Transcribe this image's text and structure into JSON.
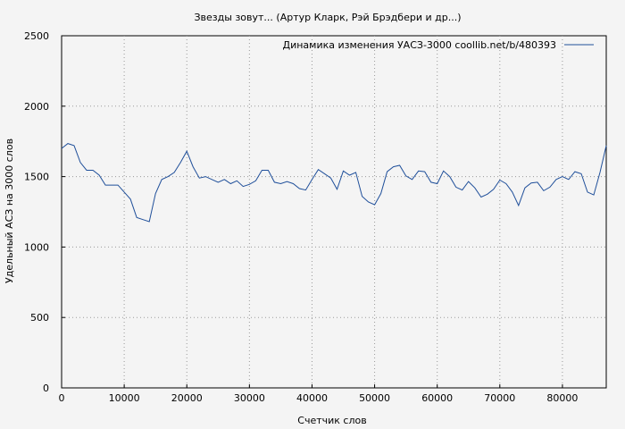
{
  "chart_data": {
    "type": "line",
    "title": "Звезды зовут... (Артур Кларк, Рэй Брэдбери и др...)",
    "xlabel": "Счетчик слов",
    "ylabel": "Удельный АСЗ на 3000 слов",
    "xlim": [
      0,
      87000
    ],
    "ylim": [
      0,
      2500
    ],
    "x_ticks": [
      0,
      10000,
      20000,
      30000,
      40000,
      50000,
      60000,
      70000,
      80000
    ],
    "x_tick_labels": [
      "0",
      "10000",
      "20000",
      "30000",
      "40000",
      "50000",
      "60000",
      "70000",
      "80000"
    ],
    "y_ticks": [
      0,
      500,
      1000,
      1500,
      2000,
      2500
    ],
    "y_tick_labels": [
      "0",
      "500",
      "1000",
      "1500",
      "2000",
      "2500"
    ],
    "grid": true,
    "legend_position": "top-right",
    "series_color": "#1f4f9a",
    "series": [
      {
        "name": "Динамика изменения УАСЗ-3000  coollib.net/b/480393",
        "x": [
          0,
          1000,
          2000,
          3000,
          4000,
          5000,
          6000,
          7000,
          8000,
          9000,
          10000,
          11000,
          12000,
          13000,
          14000,
          15000,
          16000,
          17000,
          18000,
          19000,
          20000,
          21000,
          22000,
          23000,
          24000,
          25000,
          26000,
          27000,
          28000,
          29000,
          30000,
          31000,
          32000,
          33000,
          34000,
          35000,
          36000,
          37000,
          38000,
          39000,
          40000,
          41000,
          42000,
          43000,
          44000,
          45000,
          46000,
          47000,
          48000,
          49000,
          50000,
          51000,
          52000,
          53000,
          54000,
          55000,
          56000,
          57000,
          58000,
          59000,
          60000,
          61000,
          62000,
          63000,
          64000,
          65000,
          66000,
          67000,
          68000,
          69000,
          70000,
          71000,
          72000,
          73000,
          74000,
          75000,
          76000,
          77000,
          78000,
          79000,
          80000,
          81000,
          82000,
          83000,
          84000,
          85000,
          86000,
          87000
        ],
        "values": [
          1700,
          1735,
          1720,
          1600,
          1545,
          1545,
          1510,
          1440,
          1440,
          1440,
          1390,
          1340,
          1210,
          1195,
          1180,
          1380,
          1480,
          1500,
          1530,
          1600,
          1680,
          1570,
          1490,
          1500,
          1480,
          1460,
          1480,
          1450,
          1470,
          1430,
          1445,
          1470,
          1545,
          1545,
          1460,
          1450,
          1465,
          1450,
          1415,
          1405,
          1480,
          1550,
          1520,
          1490,
          1410,
          1540,
          1510,
          1530,
          1360,
          1320,
          1300,
          1380,
          1535,
          1570,
          1580,
          1505,
          1480,
          1540,
          1535,
          1460,
          1450,
          1540,
          1500,
          1425,
          1405,
          1465,
          1420,
          1355,
          1375,
          1410,
          1475,
          1450,
          1390,
          1295,
          1420,
          1455,
          1460,
          1400,
          1425,
          1480,
          1500,
          1480,
          1535,
          1520,
          1390,
          1370,
          1530,
          1720
        ]
      }
    ]
  }
}
